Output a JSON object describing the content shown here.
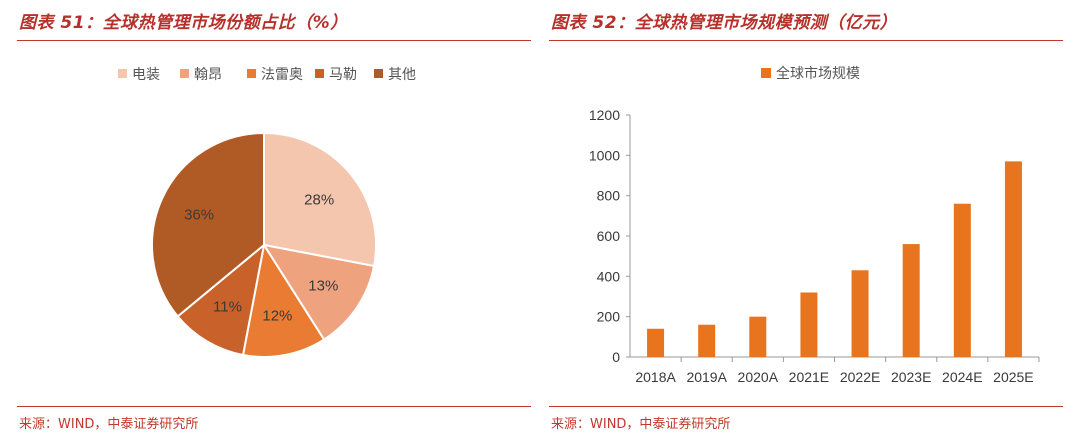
{
  "charts": [
    {
      "figure_title": "图表 51：全球热管理市场份额占比（%）",
      "source": "来源：WIND，中泰证券研究所"
    },
    {
      "figure_title": "图表 52：全球热管理市场规模预测（亿元）",
      "source": "来源：WIND，中泰证券研究所"
    }
  ],
  "chart_data": [
    {
      "type": "pie",
      "title": "图表 51：全球热管理市场份额占比（%）",
      "categories": [
        "电装",
        "翰昂",
        "法雷奥",
        "马勒",
        "其他"
      ],
      "values": [
        28,
        13,
        12,
        11,
        36
      ],
      "labels": [
        "28%",
        "13%",
        "12%",
        "11%",
        "36%"
      ],
      "colors": [
        "#f4c6ad",
        "#eea27e",
        "#e97b32",
        "#c9612a",
        "#b05a26"
      ],
      "legend": "top"
    },
    {
      "type": "bar",
      "title": "图表 52：全球热管理市场规模预测（亿元）",
      "categories": [
        "2018A",
        "2019A",
        "2020A",
        "2021E",
        "2022E",
        "2023E",
        "2024E",
        "2025E"
      ],
      "series": [
        {
          "name": "全球市场规模",
          "values": [
            140,
            160,
            200,
            320,
            430,
            560,
            760,
            970
          ]
        }
      ],
      "ylim": [
        0,
        1200
      ],
      "yticks": [
        0,
        200,
        400,
        600,
        800,
        1000,
        1200
      ],
      "color": "#e8741e",
      "grid": false,
      "legend": "top"
    }
  ]
}
